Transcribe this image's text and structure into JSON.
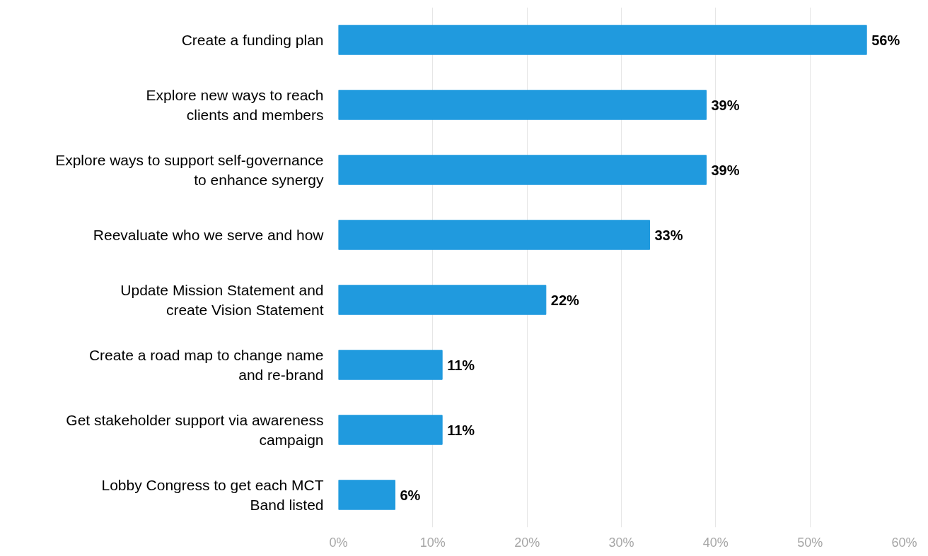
{
  "chart_data": {
    "type": "bar",
    "orientation": "horizontal",
    "categories": [
      "Create a funding plan",
      "Explore new ways to reach\nclients and members",
      "Explore ways to support self-governance\nto enhance synergy",
      "Reevaluate who we serve and how",
      "Update Mission Statement and\ncreate Vision Statement",
      "Create a road map to change name\nand re-brand",
      "Get stakeholder support via awareness\ncampaign",
      "Lobby Congress to get each MCT\nBand listed"
    ],
    "values": [
      56,
      39,
      39,
      33,
      22,
      11,
      11,
      6
    ],
    "value_labels": [
      "56%",
      "39%",
      "39%",
      "33%",
      "22%",
      "11%",
      "11%",
      "6%"
    ],
    "color": "#209ade",
    "xlim": [
      0,
      60
    ],
    "xticks": [
      {
        "value": 0,
        "label": "0%"
      },
      {
        "value": 10,
        "label": "10%"
      },
      {
        "value": 20,
        "label": "20%"
      },
      {
        "value": 30,
        "label": "30%"
      },
      {
        "value": 40,
        "label": "40%"
      },
      {
        "value": 50,
        "label": "50%"
      },
      {
        "value": 60,
        "label": "60%"
      }
    ],
    "grid": "x"
  }
}
